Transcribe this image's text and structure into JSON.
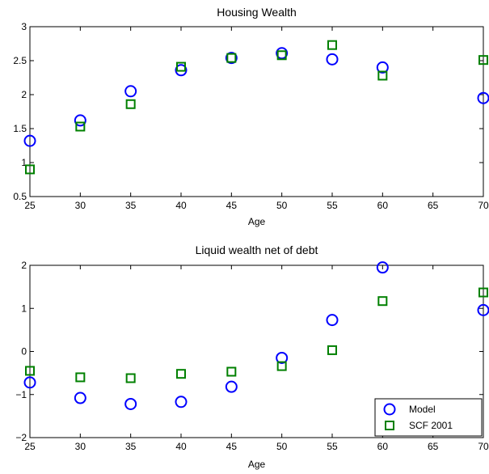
{
  "chart_data": [
    {
      "type": "scatter",
      "title": "Housing Wealth",
      "xlabel": "Age",
      "ylabel": "",
      "xlim": [
        25,
        70
      ],
      "ylim": [
        0.5,
        3
      ],
      "xticks": [
        25,
        30,
        35,
        40,
        45,
        50,
        55,
        60,
        65,
        70
      ],
      "yticks": [
        0.5,
        1,
        1.5,
        2,
        2.5,
        3
      ],
      "ytick_labels": [
        "0.5",
        "1",
        "1.5",
        "2",
        "2.5",
        "3"
      ],
      "grid": false,
      "series": [
        {
          "name": "Model",
          "marker": "circle",
          "color": "#0000ff",
          "x": [
            25,
            30,
            35,
            40,
            45,
            50,
            55,
            60,
            70
          ],
          "y": [
            1.32,
            1.62,
            2.05,
            2.36,
            2.54,
            2.61,
            2.52,
            2.4,
            1.95
          ]
        },
        {
          "name": "SCF 2001",
          "marker": "square",
          "color": "#008000",
          "x": [
            25,
            30,
            35,
            40,
            45,
            50,
            55,
            60,
            70
          ],
          "y": [
            0.9,
            1.53,
            1.86,
            2.41,
            2.54,
            2.58,
            2.73,
            2.28,
            2.51
          ]
        }
      ]
    },
    {
      "type": "scatter",
      "title": "Liquid wealth net of debt",
      "xlabel": "Age",
      "ylabel": "",
      "xlim": [
        25,
        70
      ],
      "ylim": [
        -2,
        2
      ],
      "xticks": [
        25,
        30,
        35,
        40,
        45,
        50,
        55,
        60,
        65,
        70
      ],
      "yticks": [
        -2,
        -1,
        0,
        1,
        2
      ],
      "ytick_labels": [
        "−2",
        "−1",
        "0",
        "1",
        "2"
      ],
      "grid": false,
      "legend": {
        "position": "bottom-right",
        "entries": [
          "Model",
          "SCF 2001"
        ]
      },
      "series": [
        {
          "name": "Model",
          "marker": "circle",
          "color": "#0000ff",
          "x": [
            25,
            30,
            35,
            40,
            45,
            50,
            55,
            60,
            70
          ],
          "y": [
            -0.72,
            -1.08,
            -1.22,
            -1.17,
            -0.82,
            -0.15,
            0.73,
            1.95,
            0.96
          ]
        },
        {
          "name": "SCF 2001",
          "marker": "square",
          "color": "#008000",
          "x": [
            25,
            30,
            35,
            40,
            45,
            50,
            55,
            60,
            70
          ],
          "y": [
            -0.45,
            -0.6,
            -0.62,
            -0.52,
            -0.47,
            -0.34,
            0.03,
            1.17,
            1.37
          ]
        }
      ]
    }
  ]
}
